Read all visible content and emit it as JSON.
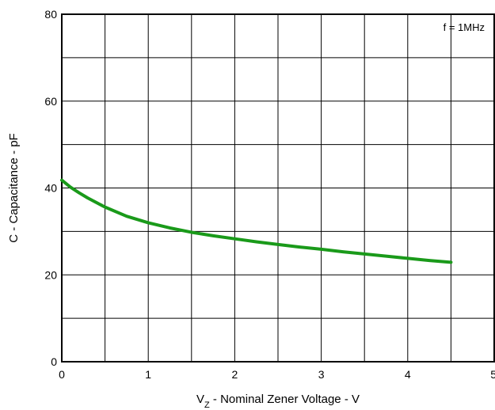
{
  "chart_data": {
    "type": "line",
    "title": "",
    "xlabel": {
      "main": "V",
      "subscript": "Z",
      "rest": " - Nominal Zener Voltage - V"
    },
    "ylabel": "C - Capacitance - pF",
    "xlim": [
      0,
      5
    ],
    "ylim": [
      0,
      80
    ],
    "x_ticks": [
      "0",
      "1",
      "2",
      "3",
      "4",
      "5"
    ],
    "y_ticks": [
      "0",
      "20",
      "40",
      "60",
      "80"
    ],
    "x_grid_step": 0.5,
    "y_grid_step": 10,
    "grid": true,
    "annotation": "f = 1MHz",
    "line_color": "#1a9a1a",
    "series": [
      {
        "x": [
          0,
          0.1,
          0.2,
          0.3,
          0.5,
          0.75,
          1.0,
          1.25,
          1.5,
          1.75,
          2.0,
          2.25,
          2.5,
          2.75,
          3.0,
          3.25,
          3.5,
          3.75,
          4.0,
          4.25,
          4.5
        ],
        "values": [
          41.8,
          40.2,
          38.9,
          37.7,
          35.6,
          33.5,
          32.0,
          30.8,
          29.8,
          29.0,
          28.3,
          27.6,
          27.0,
          26.4,
          25.9,
          25.3,
          24.8,
          24.3,
          23.8,
          23.3,
          22.9
        ]
      }
    ]
  }
}
